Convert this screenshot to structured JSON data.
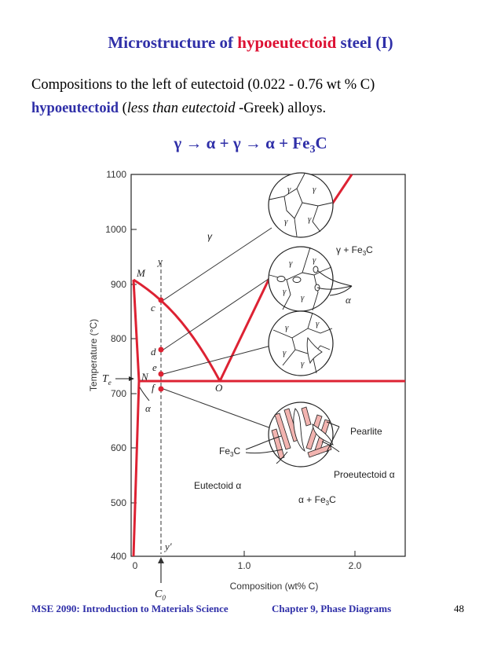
{
  "title": {
    "prefix": "Microstructure of ",
    "highlight": "hypoeutectoid",
    "suffix": " steel (I)"
  },
  "paragraph": {
    "line1": "Compositions to the left of eutectoid (0.022 - 0.76 wt % C)",
    "term": "hypoeutectoid",
    "italic": "less than eutectoid",
    "rest": " -Greek) alloys."
  },
  "reaction": {
    "s1": "γ →  α + γ  →  α + Fe",
    "sub": "3",
    "s2": "C"
  },
  "diagram": {
    "y_ticks": [
      "1100",
      "1000",
      "900",
      "800",
      "700",
      "600",
      "500",
      "400"
    ],
    "x_ticks": [
      "0",
      "1.0",
      "2.0"
    ],
    "y_axis_label": "Temperature (°C)",
    "x_axis_label": "Composition (wt% C)",
    "labels": {
      "gamma_region": "γ",
      "gamma_fe3c": "γ + Fe",
      "alpha_fe3c": "α + Fe",
      "sub3": "3",
      "c_letter": "C",
      "M": "M",
      "N": "N",
      "O": "O",
      "c": "c",
      "d": "d",
      "e": "e",
      "f": "f",
      "y": "y",
      "y_prime": "y′",
      "Te": "T",
      "Te_sub": "e",
      "C0": "C",
      "C0_sub": "0",
      "alpha": "α",
      "pearlite": "Pearlite",
      "fe3c": "Fe",
      "eutectoid_alpha": "Eutectoid α",
      "proeutectoid_alpha": "Proeutectoid α"
    }
  },
  "footer": {
    "left": "MSE 2090: Introduction to Materials Science",
    "center": "Chapter 9, Phase Diagrams",
    "page": "48"
  }
}
